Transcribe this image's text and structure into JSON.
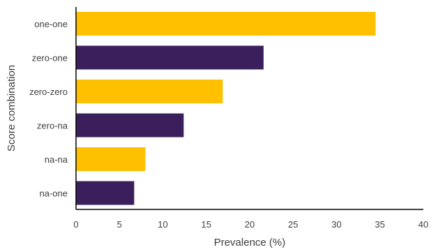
{
  "chart_data": {
    "type": "bar",
    "orientation": "horizontal",
    "categories": [
      "one-one",
      "zero-one",
      "zero-zero",
      "zero-na",
      "na-na",
      "na-one"
    ],
    "values": [
      34.5,
      21.6,
      16.9,
      12.4,
      8.0,
      6.7
    ],
    "bar_colors": [
      "#FFC000",
      "#3B1F5C",
      "#FFC000",
      "#3B1F5C",
      "#FFC000",
      "#3B1F5C"
    ],
    "xlabel": "Prevalence (%)",
    "ylabel": "Score combination",
    "xlim": [
      0,
      40
    ],
    "xticks": [
      0,
      5,
      10,
      15,
      20,
      25,
      30,
      35,
      40
    ],
    "grid": false,
    "legend": "none"
  }
}
